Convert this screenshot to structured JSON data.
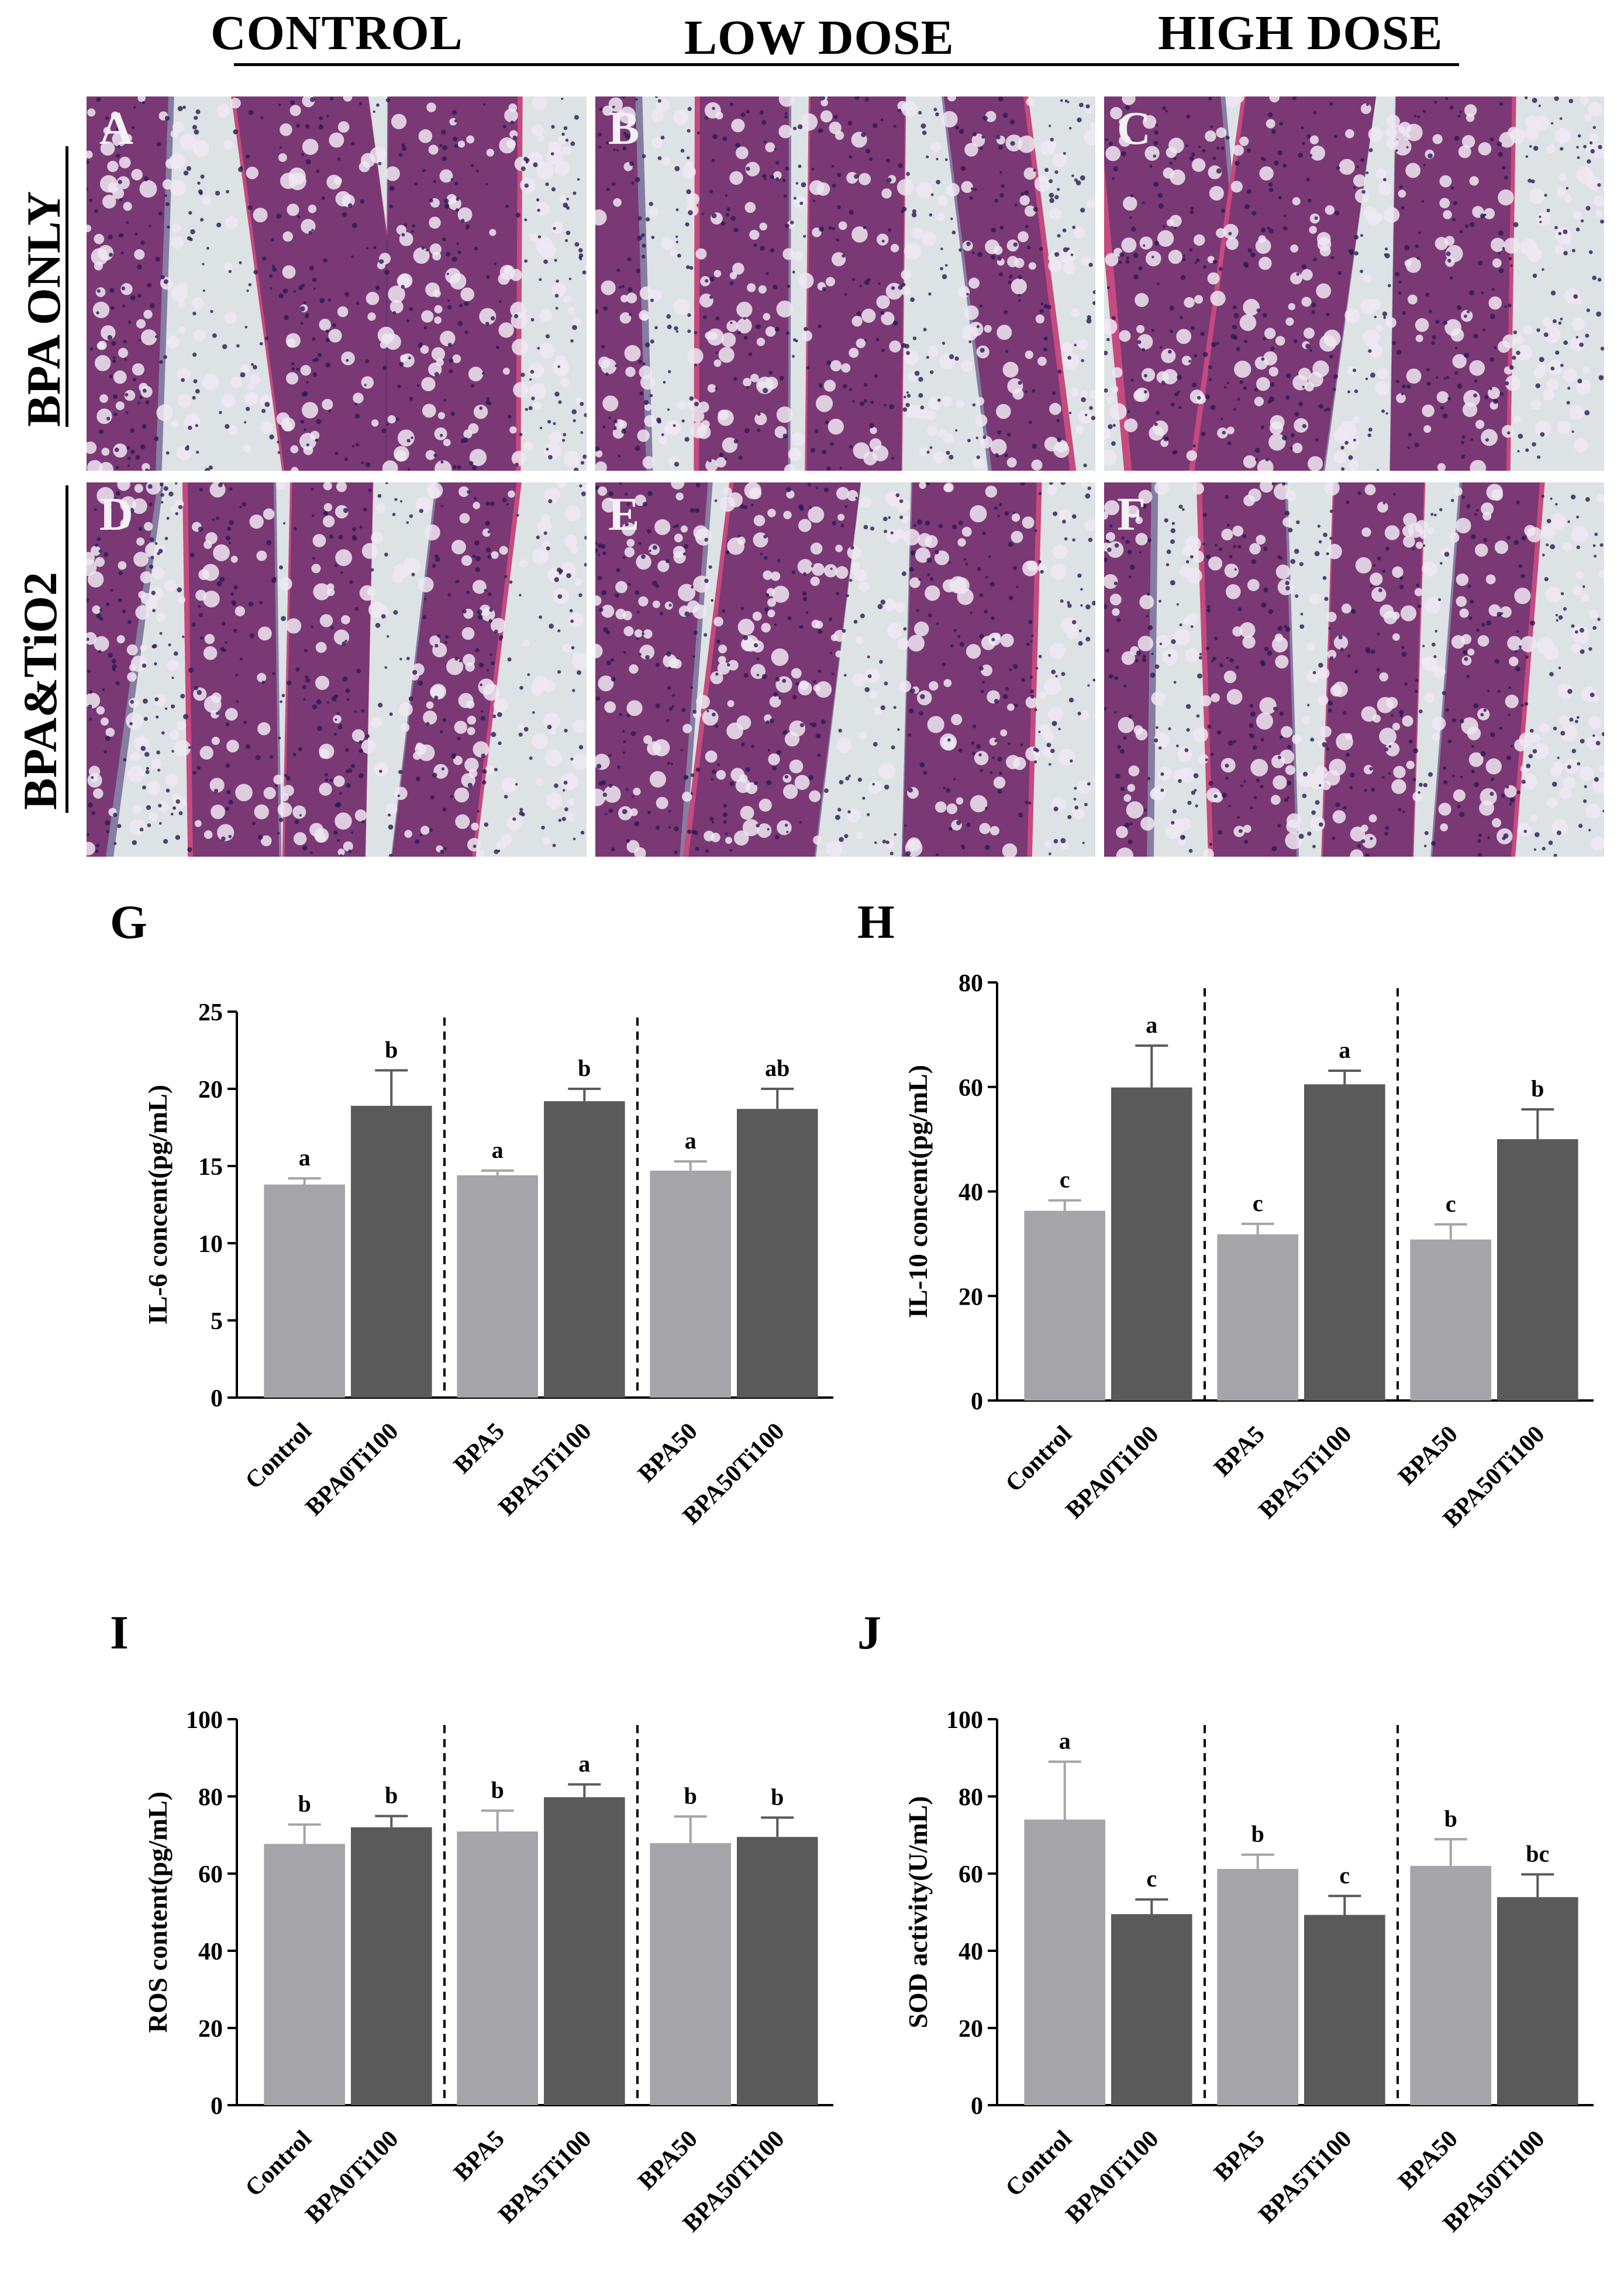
{
  "column_headers": [
    "CONTROL",
    "LOW DOSE",
    "HIGH DOSE"
  ],
  "row_headers": [
    "BPA ONLY",
    "BPA&TiO2"
  ],
  "micrograph_panels": [
    {
      "letter": "A",
      "variant": 0
    },
    {
      "letter": "B",
      "variant": 1
    },
    {
      "letter": "C",
      "variant": 2
    },
    {
      "letter": "D",
      "variant": 3
    },
    {
      "letter": "E",
      "variant": 4
    },
    {
      "letter": "F",
      "variant": 5
    }
  ],
  "colors": {
    "bar_light": "#a4a4a9",
    "bar_dark": "#5a5a5b",
    "stain_pink": "#c54a7e",
    "stain_purple": "#3d2a6b",
    "lumen": "#dde2e5"
  },
  "chart_data": [
    {
      "panel": "G",
      "type": "bar",
      "categories": [
        "Control",
        "BPA0Ti100",
        "BPA5",
        "BPA5Ti100",
        "BPA50",
        "BPA50Ti100"
      ],
      "values": [
        13.8,
        18.9,
        14.4,
        19.2,
        14.7,
        18.7
      ],
      "errors": [
        0.4,
        2.3,
        0.3,
        0.8,
        0.6,
        1.3
      ],
      "letters": [
        "a",
        "b",
        "a",
        "b",
        "a",
        "ab"
      ],
      "ylabel": "IL-6 concent(pg/mL)",
      "ylim": [
        0,
        25
      ],
      "yticks": [
        0,
        5,
        10,
        15,
        20,
        25
      ]
    },
    {
      "panel": "H",
      "type": "bar",
      "categories": [
        "Control",
        "BPA0Ti100",
        "BPA5",
        "BPA5Ti100",
        "BPA50",
        "BPA50Ti100"
      ],
      "values": [
        36.3,
        59.9,
        31.8,
        60.5,
        30.8,
        50.0
      ],
      "errors": [
        2.0,
        8.0,
        2.0,
        2.6,
        2.9,
        5.7
      ],
      "letters": [
        "c",
        "a",
        "c",
        "a",
        "c",
        "b"
      ],
      "ylabel": "IL-10 concent(pg/mL)",
      "ylim": [
        0,
        80
      ],
      "yticks": [
        0,
        20,
        40,
        60,
        80
      ]
    },
    {
      "panel": "I",
      "type": "bar",
      "categories": [
        "Control",
        "BPA0Ti100",
        "BPA5",
        "BPA5Ti100",
        "BPA50",
        "BPA50Ti100"
      ],
      "values": [
        67.7,
        72.0,
        70.9,
        79.8,
        67.9,
        69.5
      ],
      "errors": [
        5.0,
        2.9,
        5.4,
        3.3,
        6.9,
        5.0
      ],
      "letters": [
        "b",
        "b",
        "b",
        "a",
        "b",
        "b"
      ],
      "ylabel": "ROS content(pg/mL)",
      "ylim": [
        0,
        100
      ],
      "yticks": [
        0,
        20,
        40,
        60,
        80,
        100
      ]
    },
    {
      "panel": "J",
      "type": "bar",
      "categories": [
        "Control",
        "BPA0Ti100",
        "BPA5",
        "BPA5Ti100",
        "BPA50",
        "BPA50Ti100"
      ],
      "values": [
        74.0,
        49.5,
        61.2,
        49.3,
        62.0,
        53.9
      ],
      "errors": [
        15.0,
        3.8,
        3.7,
        4.9,
        6.9,
        5.9
      ],
      "letters": [
        "a",
        "c",
        "b",
        "c",
        "b",
        "bc"
      ],
      "ylabel": "SOD activity(U/mL)",
      "ylim": [
        0,
        100
      ],
      "yticks": [
        0,
        20,
        40,
        60,
        80,
        100
      ]
    }
  ]
}
